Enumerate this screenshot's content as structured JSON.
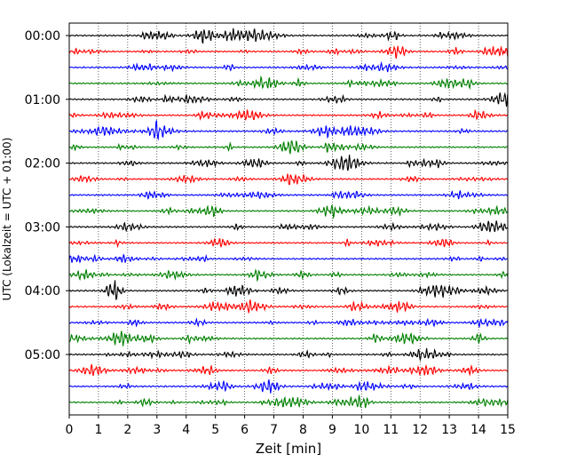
{
  "chart_data": {
    "type": "line",
    "title": "",
    "xlabel": "Zeit  [min]",
    "ylabel": "UTC (Lokalzeit = UTC + 01:00)",
    "xlim": [
      0,
      15
    ],
    "x_ticks": [
      0,
      1,
      2,
      3,
      4,
      5,
      6,
      7,
      8,
      9,
      10,
      11,
      12,
      13,
      14,
      15
    ],
    "y_tick_labels": [
      "00:00",
      "01:00",
      "02:00",
      "03:00",
      "04:00",
      "05:00"
    ],
    "trace_count": 24,
    "trace_interval_minutes": 15,
    "trace_colors": [
      "#000000",
      "#ff0000",
      "#0000ff",
      "#008000"
    ],
    "grid": "vertical dotted at each minute",
    "legend": "none"
  }
}
